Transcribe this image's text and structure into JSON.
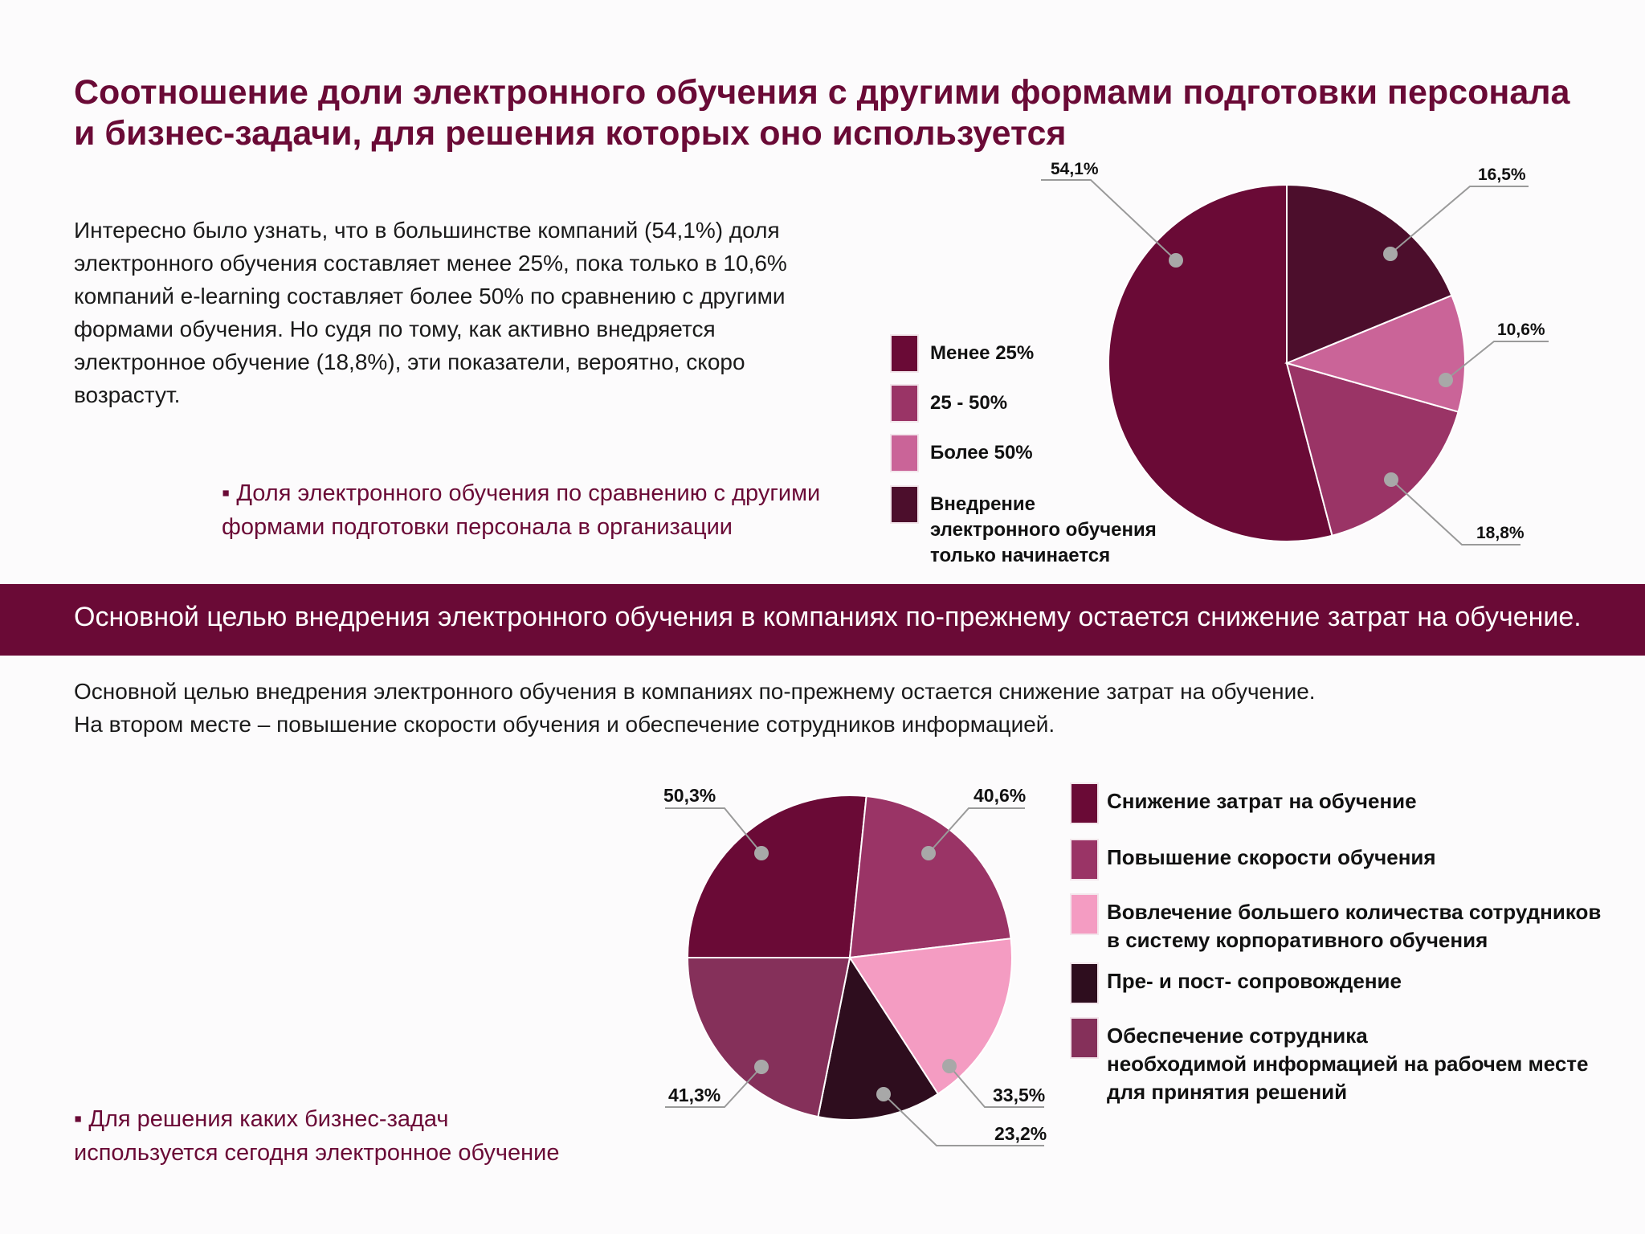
{
  "title_lines": [
    "Соотношение доли электронного обучения с другими формами подготовки персонала",
    "и бизнес-задачи, для решения которых оно используется"
  ],
  "intro_lines": [
    "Интересно было узнать, что в большинстве компаний (54,1%) доля",
    "электронного обучения составляет менее 25%, пока только в 10,6%",
    "компаний e-learning составляет более 50% по сравнению с другими",
    "формами обучения. Но судя по тому, как активно внедряется",
    "электронное обучение (18,8%), эти показатели, вероятно, скоро",
    "возрастут."
  ],
  "caption1_lines": [
    "▪ Доля электронного обучения по сравнению с другими",
    "формами подготовки персонала в организации"
  ],
  "band_text": "Основной целью внедрения электронного обучения в компаниях по-прежнему остается снижение затрат на обучение.",
  "text2_lines": [
    "Основной целью внедрения электронного обучения в компаниях по-прежнему остается снижение затрат на обучение.",
    "На втором месте – повышение скорости обучения и обеспечение сотрудников информацией."
  ],
  "caption2_lines": [
    "▪ Для решения каких бизнес-задач",
    "используется сегодня  электронное обучение"
  ],
  "chart_data": [
    {
      "type": "pie",
      "categories": [
        "Менее 25%",
        "25 - 50%",
        "Более 50%",
        "Внедрение электронного обучения только начинается"
      ],
      "legend_lines": [
        [
          "Менее 25%"
        ],
        [
          "25 - 50%"
        ],
        [
          "Более 50%"
        ],
        [
          "Внедрение",
          "электронного обучения",
          "только начинается"
        ]
      ],
      "values": [
        54.1,
        16.5,
        10.6,
        18.8
      ],
      "data_labels": [
        "54,1%",
        "16,5%",
        "10,6%",
        "18,8%"
      ],
      "colors": [
        "#6a0a36",
        "#9a3466",
        "#ca6498",
        "#4c0e2c"
      ],
      "legend_position": "left"
    },
    {
      "type": "pie",
      "categories": [
        "Снижение затрат на обучение",
        "Повышение скорости обучения",
        "Вовлечение большего количества сотрудников в систему корпоративного обучения",
        "Пре- и пост- сопровождение",
        "Обеспечение сотрудника необходимой информацией на рабочем месте для принятия решений"
      ],
      "legend_lines": [
        [
          "Снижение затрат на обучение"
        ],
        [
          "Повышение скорости обучения"
        ],
        [
          "Вовлечение большего количества сотрудников",
          "в систему корпоративного обучения"
        ],
        [
          "Пре- и пост- сопровождение"
        ],
        [
          "Обеспечение сотрудника",
          "необходимой информацией на рабочем месте",
          "для принятия решений"
        ]
      ],
      "values": [
        50.3,
        40.6,
        33.5,
        23.2,
        41.3
      ],
      "data_labels": [
        "50,3%",
        "40,6%",
        "33,5%",
        "23,2%",
        "41,3%"
      ],
      "colors": [
        "#6a0a36",
        "#9a3466",
        "#f49cc2",
        "#2e0d1e",
        "#85305a"
      ],
      "legend_position": "right"
    }
  ]
}
